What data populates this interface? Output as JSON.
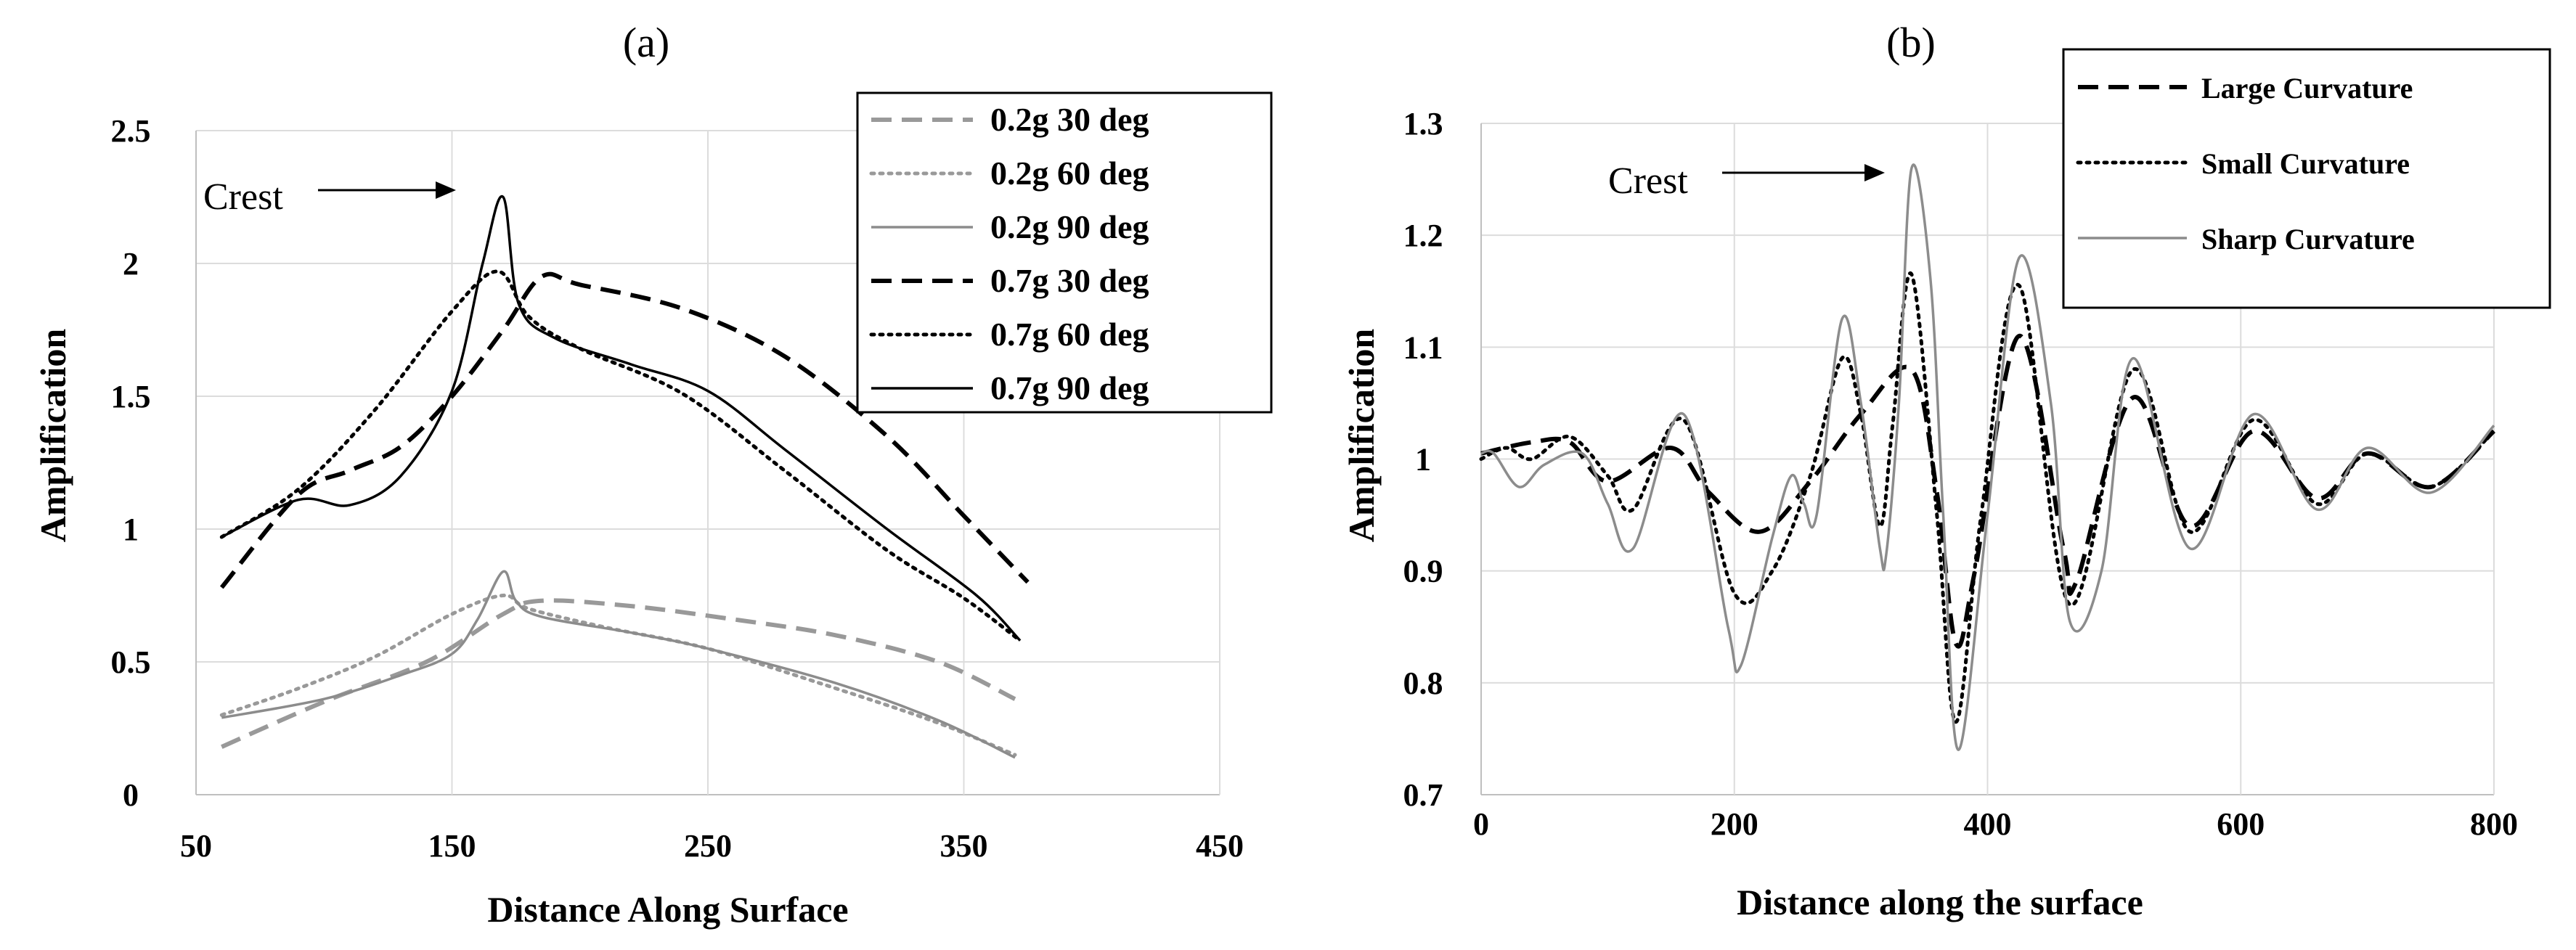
{
  "chart_data": [
    {
      "type": "line",
      "panel_label": "(a)",
      "xlabel": "Distance Along Surface",
      "ylabel": "Amplification",
      "xlim": [
        50,
        450
      ],
      "ylim": [
        0,
        2.5
      ],
      "xticks": [
        50,
        150,
        250,
        350,
        450
      ],
      "yticks": [
        0,
        0.5,
        1,
        1.5,
        2,
        2.5
      ],
      "ytick_labels": [
        "0",
        "0.5",
        "1",
        "1.5",
        "2",
        "2.5"
      ],
      "grid": true,
      "legend_position": "top-right",
      "annotation": {
        "text": "Crest",
        "points_to": [
          170,
          2.25
        ]
      },
      "series": [
        {
          "name": "0.2g 30 deg",
          "color": "#999999",
          "dash": "dashed",
          "x": [
            60,
            100,
            140,
            170,
            185,
            220,
            260,
            300,
            340,
            370
          ],
          "y": [
            0.18,
            0.35,
            0.5,
            0.68,
            0.73,
            0.71,
            0.66,
            0.6,
            0.5,
            0.36
          ]
        },
        {
          "name": "0.2g 60 deg",
          "color": "#999999",
          "dash": "dotted",
          "x": [
            60,
            90,
            120,
            150,
            170,
            180,
            210,
            250,
            300,
            340,
            370
          ],
          "y": [
            0.3,
            0.4,
            0.52,
            0.68,
            0.75,
            0.7,
            0.63,
            0.55,
            0.4,
            0.27,
            0.15
          ]
        },
        {
          "name": "0.2g 90 deg",
          "color": "#8c8c8c",
          "dash": "solid",
          "x": [
            60,
            100,
            130,
            150,
            160,
            170,
            175,
            185,
            220,
            250,
            300,
            340,
            370
          ],
          "y": [
            0.29,
            0.36,
            0.45,
            0.53,
            0.66,
            0.84,
            0.73,
            0.67,
            0.61,
            0.55,
            0.42,
            0.28,
            0.14
          ]
        },
        {
          "name": "0.7g 30 deg",
          "color": "#000000",
          "dash": "dashed",
          "x": [
            60,
            90,
            110,
            130,
            150,
            170,
            185,
            200,
            240,
            280,
            320,
            350,
            375
          ],
          "y": [
            0.78,
            1.13,
            1.22,
            1.31,
            1.5,
            1.75,
            1.95,
            1.92,
            1.83,
            1.65,
            1.35,
            1.05,
            0.8
          ]
        },
        {
          "name": "0.7g 60 deg",
          "color": "#000000",
          "dash": "dotted",
          "x": [
            60,
            90,
            120,
            150,
            168,
            180,
            200,
            240,
            280,
            320,
            350,
            372
          ],
          "y": [
            0.97,
            1.15,
            1.45,
            1.82,
            1.97,
            1.8,
            1.68,
            1.51,
            1.22,
            0.92,
            0.74,
            0.58
          ]
        },
        {
          "name": "0.7g 90 deg",
          "color": "#000000",
          "dash": "solid",
          "x": [
            60,
            90,
            110,
            130,
            150,
            162,
            170,
            176,
            190,
            220,
            250,
            280,
            320,
            355,
            372
          ],
          "y": [
            0.97,
            1.11,
            1.09,
            1.2,
            1.52,
            2.0,
            2.25,
            1.85,
            1.72,
            1.62,
            1.52,
            1.3,
            1.0,
            0.75,
            0.58
          ]
        }
      ]
    },
    {
      "type": "line",
      "panel_label": "(b)",
      "xlabel": "Distance along the surface",
      "ylabel": "Amplification",
      "xlim": [
        0,
        800
      ],
      "ylim": [
        0.7,
        1.3
      ],
      "xticks": [
        0,
        200,
        400,
        600,
        800
      ],
      "yticks": [
        0.7,
        0.8,
        0.9,
        1.0,
        1.1,
        1.2,
        1.3
      ],
      "ytick_labels": [
        "0.7",
        "0.8",
        "0.9",
        "1",
        "1.1",
        "1.2",
        "1.3"
      ],
      "grid": true,
      "legend_position": "top-right",
      "annotation": {
        "text": "Crest",
        "points_to": [
          340,
          1.26
        ]
      },
      "series": [
        {
          "name": "Large Curvature",
          "color": "#000000",
          "dash": "dashed",
          "x": [
            0,
            40,
            70,
            100,
            150,
            180,
            220,
            260,
            300,
            340,
            360,
            375,
            390,
            425,
            460,
            470,
            515,
            560,
            610,
            660,
            700,
            750,
            800
          ],
          "y": [
            1.005,
            1.015,
            1.015,
            0.98,
            1.01,
            0.97,
            0.935,
            0.98,
            1.04,
            1.08,
            0.97,
            0.835,
            0.9,
            1.11,
            0.92,
            0.89,
            1.055,
            0.94,
            1.025,
            0.965,
            1.005,
            0.975,
            1.025
          ]
        },
        {
          "name": "Small Curvature",
          "color": "#000000",
          "dash": "dotted",
          "x": [
            0,
            20,
            40,
            70,
            100,
            120,
            160,
            200,
            230,
            260,
            285,
            300,
            315,
            325,
            340,
            360,
            375,
            395,
            425,
            465,
            515,
            560,
            610,
            660,
            700,
            750,
            800
          ],
          "y": [
            1.0,
            1.01,
            1.0,
            1.02,
            0.985,
            0.955,
            1.035,
            0.88,
            0.9,
            0.985,
            1.09,
            1.04,
            0.94,
            1.03,
            1.165,
            0.95,
            0.765,
            0.95,
            1.155,
            0.87,
            1.08,
            0.935,
            1.035,
            0.96,
            1.005,
            0.975,
            1.025
          ]
        },
        {
          "name": "Sharp Curvature",
          "color": "#8c8c8c",
          "dash": "solid",
          "x": [
            0,
            10,
            30,
            50,
            80,
            100,
            120,
            160,
            195,
            205,
            230,
            245,
            255,
            265,
            285,
            300,
            315,
            320,
            330,
            340,
            355,
            365,
            377,
            400,
            425,
            450,
            465,
            490,
            515,
            560,
            610,
            660,
            700,
            750,
            800
          ],
          "y": [
            1.005,
            1.005,
            0.975,
            0.995,
            1.005,
            0.96,
            0.92,
            1.04,
            0.85,
            0.815,
            0.93,
            0.985,
            0.96,
            0.95,
            1.125,
            1.05,
            0.92,
            0.915,
            1.05,
            1.26,
            1.16,
            0.95,
            0.74,
            0.95,
            1.18,
            1.05,
            0.855,
            0.9,
            1.09,
            0.92,
            1.04,
            0.955,
            1.01,
            0.97,
            1.03
          ]
        }
      ]
    }
  ]
}
